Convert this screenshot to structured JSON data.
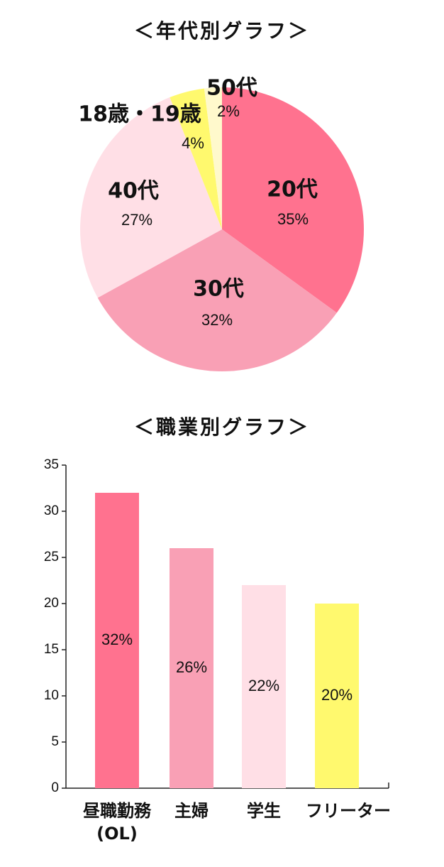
{
  "chart_data": [
    {
      "type": "pie",
      "title": "＜年代別グラフ＞",
      "categories": [
        "20代",
        "30代",
        "40代",
        "18歳・19歳",
        "50代"
      ],
      "values": [
        35,
        32,
        27,
        4,
        2
      ],
      "value_labels": [
        "35%",
        "32%",
        "27%",
        "4%",
        "2%"
      ],
      "colors": [
        "#ff728f",
        "#f9a0b5",
        "#ffdfe6",
        "#fff96e",
        "#fff9cc"
      ]
    },
    {
      "type": "bar",
      "title": "＜職業別グラフ＞",
      "categories": [
        "昼職勤務(OL)",
        "主婦",
        "学生",
        "フリーター"
      ],
      "values": [
        32,
        26,
        22,
        20
      ],
      "value_labels": [
        "32%",
        "26%",
        "22%",
        "20%"
      ],
      "colors": [
        "#ff728f",
        "#f9a0b5",
        "#ffdfe6",
        "#fff96e"
      ],
      "ylim": [
        0,
        35
      ],
      "yticks": [
        0,
        5,
        10,
        15,
        20,
        25,
        30,
        35
      ],
      "grid": false
    }
  ]
}
